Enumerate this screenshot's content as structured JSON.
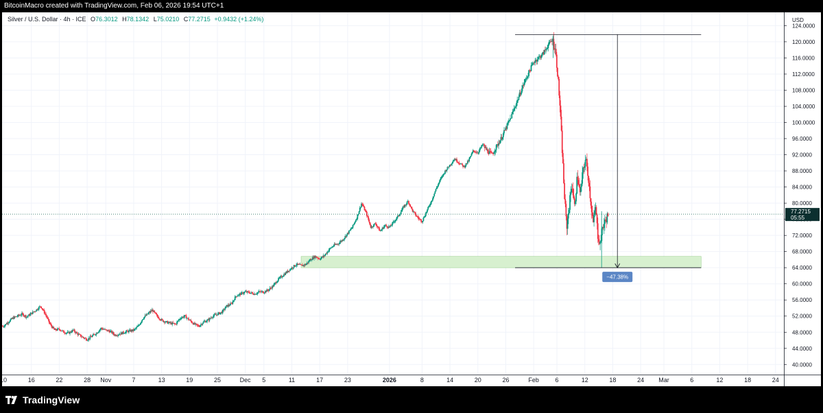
{
  "header": {
    "attribution": "BitcoinMacro created with TradingView.com, Feb 06, 2026 19:54 UTC+1"
  },
  "legend": {
    "symbol": "Silver / U.S. Dollar · 4h · ICE",
    "open_label": "O",
    "open": "76.3012",
    "high_label": "H",
    "high": "78.1342",
    "low_label": "L",
    "low": "75.0210",
    "close_label": "C",
    "close": "77.2715",
    "change": "+0.9432 (+1.24%)"
  },
  "price_axis": {
    "currency": "USD",
    "current_price": "77.2715",
    "countdown": "05:55"
  },
  "measure_tool": {
    "label": "−47.38%"
  },
  "footer": {
    "brand": "TradingView"
  },
  "colors": {
    "up": "#089981",
    "down": "#f23645",
    "zone_fill": "#d7f0cf",
    "measure_label_bg": "#5b86c5",
    "price_tag_bg": "#0b2f2f"
  },
  "chart_data": {
    "type": "candlestick",
    "timeframe": "4h",
    "y_ticks": [
      "124.0000",
      "120.0000",
      "116.0000",
      "112.0000",
      "108.0000",
      "104.0000",
      "100.0000",
      "96.0000",
      "92.0000",
      "88.0000",
      "84.0000",
      "80.0000",
      "76.0000",
      "72.0000",
      "68.0000",
      "64.0000",
      "60.0000",
      "56.0000",
      "52.0000",
      "48.0000",
      "44.0000",
      "40.0000"
    ],
    "y_tick_values": [
      124,
      120,
      116,
      112,
      108,
      104,
      100,
      96,
      92,
      88,
      84,
      80,
      76,
      72,
      68,
      64,
      60,
      56,
      52,
      48,
      44,
      40
    ],
    "ylim": [
      37.5,
      127.3
    ],
    "x_ticks": [
      "10",
      "16",
      "22",
      "28",
      "Nov",
      "7",
      "13",
      "19",
      "25",
      "Dec",
      "5",
      "11",
      "17",
      "23",
      "2026",
      "8",
      "14",
      "20",
      "26",
      "Feb",
      "6",
      "12",
      "18",
      "24",
      "Mar",
      "6",
      "12",
      "18",
      "24"
    ],
    "x_tick_days": [
      -8,
      -2,
      4,
      10,
      14,
      20,
      26,
      32,
      38,
      44,
      48,
      54,
      60,
      66,
      75,
      82,
      88,
      94,
      100,
      106,
      111,
      117,
      123,
      129,
      134,
      140,
      146,
      152,
      158
    ],
    "x_domain_days": [
      -8.3,
      159.8
    ],
    "last_price": 77.2715,
    "zone": {
      "from_day": 56,
      "to_day": 142,
      "low": 64.0,
      "high": 66.8
    },
    "measure": {
      "from_day": 102,
      "to_day": 142,
      "arrow_day": 124,
      "top": 121.8,
      "bottom": 64.0
    },
    "path_points": [
      [
        -8,
        49.5
      ],
      [
        -6,
        51.5
      ],
      [
        -4,
        52.5
      ],
      [
        -3,
        51.8
      ],
      [
        -1,
        53.5
      ],
      [
        0,
        54.5
      ],
      [
        1,
        52.5
      ],
      [
        2,
        50
      ],
      [
        3,
        48.5
      ],
      [
        4,
        48.8
      ],
      [
        5,
        48
      ],
      [
        6,
        47.8
      ],
      [
        7,
        48.5
      ],
      [
        8,
        47.5
      ],
      [
        9,
        46.8
      ],
      [
        10,
        46.2
      ],
      [
        11,
        47
      ],
      [
        12,
        47.8
      ],
      [
        13,
        49
      ],
      [
        14,
        48.5
      ],
      [
        15,
        48.2
      ],
      [
        16,
        47.3
      ],
      [
        17,
        47.6
      ],
      [
        18,
        48
      ],
      [
        19,
        48.3
      ],
      [
        20,
        48.5
      ],
      [
        21,
        49.5
      ],
      [
        22,
        51.5
      ],
      [
        23,
        52.5
      ],
      [
        24,
        53.5
      ],
      [
        25,
        52
      ],
      [
        26,
        51
      ],
      [
        27,
        50.5
      ],
      [
        28,
        50.2
      ],
      [
        29,
        50
      ],
      [
        30,
        51.5
      ],
      [
        31,
        52
      ],
      [
        32,
        51
      ],
      [
        33,
        50
      ],
      [
        34,
        49.5
      ],
      [
        35,
        50.5
      ],
      [
        36,
        51
      ],
      [
        37,
        52
      ],
      [
        38,
        52.5
      ],
      [
        39,
        53
      ],
      [
        40,
        54.5
      ],
      [
        41,
        55
      ],
      [
        42,
        57
      ],
      [
        43,
        57.5
      ],
      [
        44,
        58
      ],
      [
        45,
        57.8
      ],
      [
        46,
        57.5
      ],
      [
        47,
        58
      ],
      [
        48,
        58
      ],
      [
        49,
        58.5
      ],
      [
        50,
        59.5
      ],
      [
        51,
        61
      ],
      [
        52,
        62
      ],
      [
        53,
        63
      ],
      [
        54,
        64
      ],
      [
        55,
        64.8
      ],
      [
        56,
        64.5
      ],
      [
        57,
        64.8
      ],
      [
        58,
        66
      ],
      [
        59,
        66.8
      ],
      [
        60,
        66.2
      ],
      [
        61,
        67
      ],
      [
        62,
        68.5
      ],
      [
        63,
        69.5
      ],
      [
        64,
        70
      ],
      [
        65,
        71
      ],
      [
        66,
        72.5
      ],
      [
        67,
        74
      ],
      [
        68,
        76.5
      ],
      [
        69,
        80
      ],
      [
        70,
        77.5
      ],
      [
        71,
        74
      ],
      [
        72,
        75
      ],
      [
        73,
        73
      ],
      [
        74,
        74.5
      ],
      [
        75,
        74
      ],
      [
        76,
        75.5
      ],
      [
        77,
        77
      ],
      [
        78,
        79
      ],
      [
        79,
        80.5
      ],
      [
        80,
        78
      ],
      [
        81,
        76.5
      ],
      [
        82,
        75.5
      ],
      [
        83,
        78
      ],
      [
        84,
        80.5
      ],
      [
        85,
        83.5
      ],
      [
        86,
        86
      ],
      [
        87,
        88
      ],
      [
        88,
        89.5
      ],
      [
        89,
        91
      ],
      [
        90,
        90
      ],
      [
        91,
        89
      ],
      [
        92,
        90.5
      ],
      [
        93,
        93
      ],
      [
        94,
        92.5
      ],
      [
        95,
        94.5
      ],
      [
        96,
        93
      ],
      [
        97,
        92
      ],
      [
        98,
        94
      ],
      [
        99,
        96
      ],
      [
        100,
        98.5
      ],
      [
        101,
        101
      ],
      [
        102,
        104
      ],
      [
        103,
        107
      ],
      [
        104,
        110
      ],
      [
        105,
        112.5
      ],
      [
        106,
        115
      ],
      [
        107,
        116
      ],
      [
        108,
        117
      ],
      [
        109,
        119
      ],
      [
        110,
        120.5
      ],
      [
        110.6,
        118.5
      ],
      [
        111.1,
        113
      ],
      [
        111.6,
        105
      ],
      [
        112.1,
        94
      ],
      [
        112.6,
        82
      ],
      [
        113.1,
        74
      ],
      [
        113.6,
        79
      ],
      [
        114.2,
        85
      ],
      [
        114.8,
        79
      ],
      [
        115.4,
        87
      ],
      [
        116,
        82
      ],
      [
        116.6,
        88
      ],
      [
        117.2,
        91
      ],
      [
        117.8,
        86
      ],
      [
        118.3,
        80
      ],
      [
        118.8,
        75
      ],
      [
        119.3,
        79
      ],
      [
        119.8,
        72
      ],
      [
        120.3,
        70
      ],
      [
        120.8,
        74
      ],
      [
        121.4,
        75.5
      ],
      [
        122,
        77.27
      ]
    ]
  }
}
